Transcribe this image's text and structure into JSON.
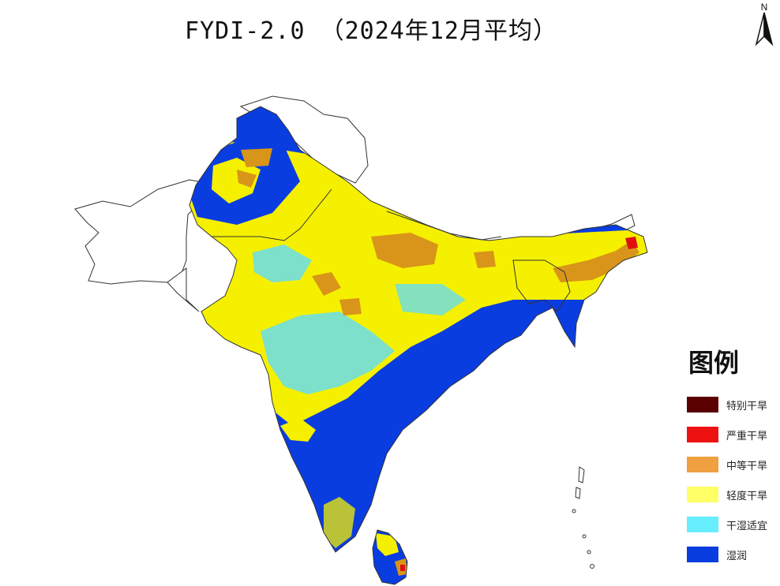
{
  "title": "FYDI-2.0 （2024年12月平均）",
  "north_arrow": {
    "label": "N",
    "icon": "north-arrow-icon"
  },
  "legend": {
    "title": "图例",
    "items": [
      {
        "label": "特别干旱",
        "color": "#5a0000"
      },
      {
        "label": "严重干旱",
        "color": "#ee1111"
      },
      {
        "label": "中等干旱",
        "color": "#f0a040"
      },
      {
        "label": "轻度干旱",
        "color": "#ffff66"
      },
      {
        "label": "干湿适宜",
        "color": "#66eeff"
      },
      {
        "label": "湿润",
        "color": "#0a3de0"
      }
    ]
  },
  "colors": {
    "wet": "#0a3de0",
    "suitable": "#66ddee",
    "mild": "#f5f000",
    "moderate": "#d8951a",
    "severe": "#e01010",
    "extreme": "#5a0000",
    "no_data": "#ffffff",
    "outline": "#333333"
  }
}
